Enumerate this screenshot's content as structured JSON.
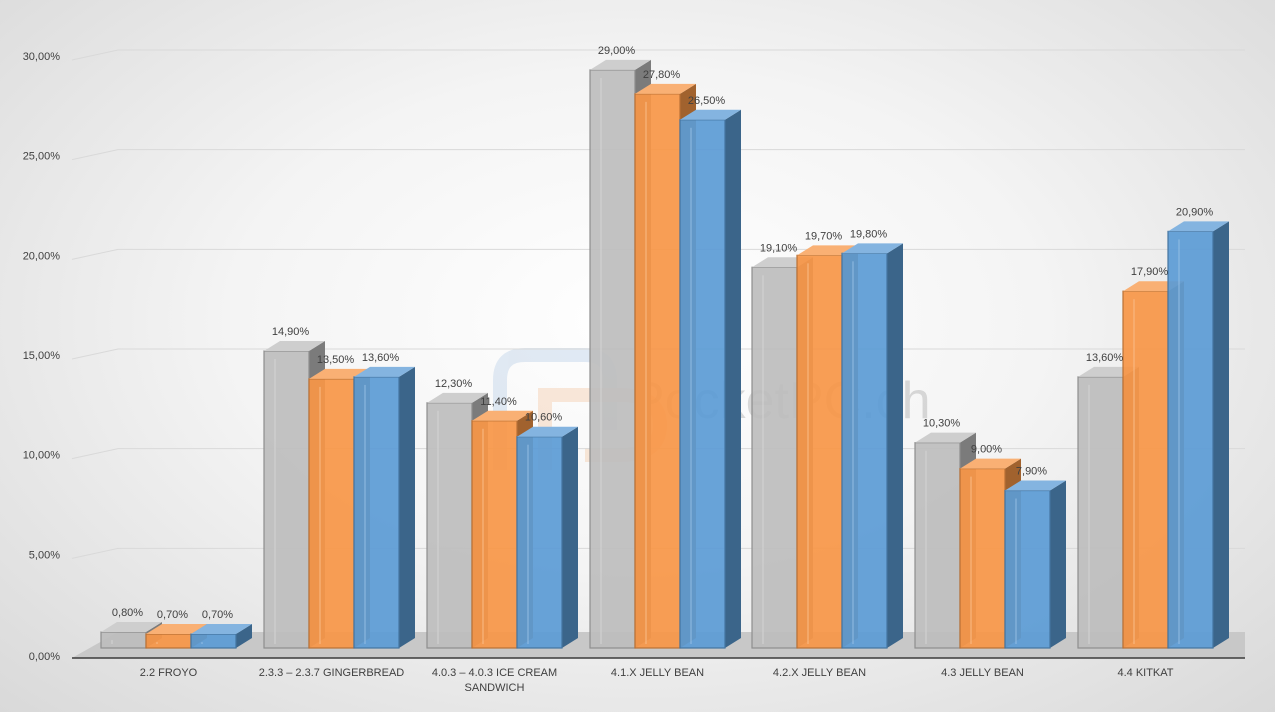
{
  "watermark": "PocketPC.ch",
  "colors": {
    "series1": "#bdbdbd",
    "series2": "#f79646",
    "series3": "#5b9bd5",
    "axis_text": "#404040",
    "gridline": "#d9d9d9",
    "floor": "#c8c8c8"
  },
  "chart_data": {
    "type": "bar",
    "bar_style": "3d-clustered",
    "categories": [
      "2.2 FROYO",
      "2.3.3 – 2.3.7 GINGERBREAD",
      "4.0.3 – 4.0.3 ICE CREAM SANDWICH",
      "4.1.X JELLY BEAN",
      "4.2.X JELLY BEAN",
      "4.3 JELLY BEAN",
      "4.4 KITKAT"
    ],
    "category_lines": [
      [
        "2.2 FROYO"
      ],
      [
        "2.3.3 – 2.3.7 GINGERBREAD"
      ],
      [
        "4.0.3 – 4.0.3 ICE CREAM",
        "SANDWICH"
      ],
      [
        "4.1.X JELLY BEAN"
      ],
      [
        "4.2.X JELLY BEAN"
      ],
      [
        "4.3 JELLY BEAN"
      ],
      [
        "4.4 KITKAT"
      ]
    ],
    "series": [
      {
        "values": [
          0.8,
          14.9,
          12.3,
          29.0,
          19.1,
          10.3,
          13.6
        ],
        "labels": [
          "0,80%",
          "14,90%",
          "12,30%",
          "29,00%",
          "19,10%",
          "10,30%",
          "13,60%"
        ]
      },
      {
        "values": [
          0.7,
          13.5,
          11.4,
          27.8,
          19.7,
          9.0,
          17.9
        ],
        "labels": [
          "0,70%",
          "13,50%",
          "11,40%",
          "27,80%",
          "19,70%",
          "9,00%",
          "17,90%"
        ]
      },
      {
        "values": [
          0.7,
          13.6,
          10.6,
          26.5,
          19.8,
          7.9,
          20.9
        ],
        "labels": [
          "0,70%",
          "13,60%",
          "10,60%",
          "26,50%",
          "19,80%",
          "7,90%",
          "20,90%"
        ]
      }
    ],
    "yticks": [
      0,
      5,
      10,
      15,
      20,
      25,
      30
    ],
    "ytick_labels": [
      "0,00%",
      "5,00%",
      "10,00%",
      "15,00%",
      "20,00%",
      "25,00%",
      "30,00%"
    ],
    "ylim": [
      0,
      30
    ],
    "grid": true,
    "legend": "none"
  }
}
